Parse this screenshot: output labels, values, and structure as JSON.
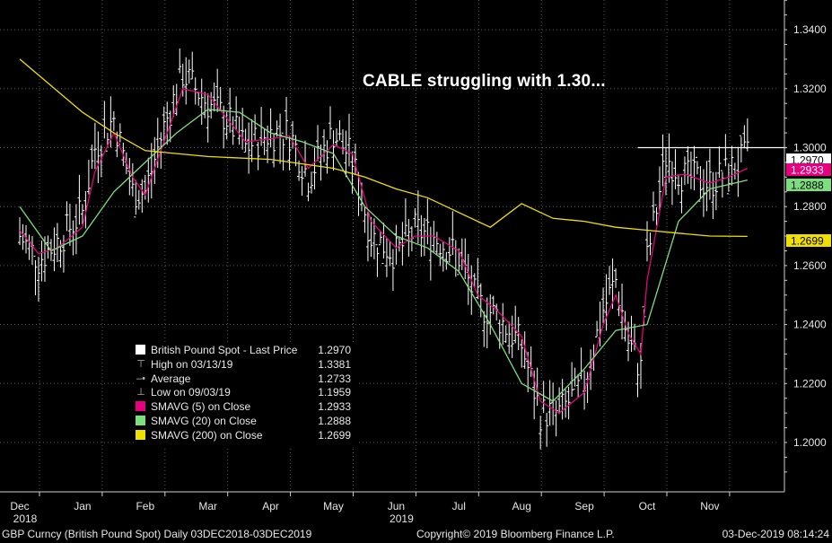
{
  "title": "CABLE struggling with 1.30...",
  "footer": {
    "left": "GBP Curncy (British Pound Spot)  Daily 03DEC2018-03DEC2019",
    "center": "Copyright© 2019 Bloomberg Finance L.P.",
    "right": "03-Dec-2019 08:14:24"
  },
  "legend": [
    {
      "label": "British Pound Spot - Last Price",
      "value": "1.2970",
      "icon": "white-square-icon",
      "color": "#ffffff"
    },
    {
      "label": "High on 03/13/19",
      "value": "1.3381",
      "icon": "high-marker-icon",
      "color": "#bbbbbb"
    },
    {
      "label": "Average",
      "value": "1.2733",
      "icon": "average-line-icon",
      "color": "#bbbbbb"
    },
    {
      "label": "Low on 09/03/19",
      "value": "1.1959",
      "icon": "low-marker-icon",
      "color": "#bbbbbb"
    },
    {
      "label": "SMAVG (5)  on Close",
      "value": "1.2933",
      "icon": "magenta-square-icon",
      "color": "#e6007e"
    },
    {
      "label": "SMAVG (20)  on Close",
      "value": "1.2888",
      "icon": "green-square-icon",
      "color": "#7dde7d"
    },
    {
      "label": "SMAVG (200)  on Close",
      "value": "1.2699",
      "icon": "yellow-square-icon",
      "color": "#f0e000"
    }
  ],
  "chart_data": {
    "type": "line",
    "x_categories": [
      "Dec",
      "Jan",
      "Feb",
      "Mar",
      "Apr",
      "May",
      "Jun",
      "Jul",
      "Aug",
      "Sep",
      "Oct",
      "Nov"
    ],
    "x_year_labels": [
      {
        "at": "Dec",
        "label": "2018"
      },
      {
        "at": "Jun",
        "label": "2019"
      }
    ],
    "yticks": [
      "1.2000",
      "1.2200",
      "1.2400",
      "1.2600",
      "1.2800",
      "1.3000",
      "1.3200",
      "1.3400"
    ],
    "ylim": [
      1.19,
      1.35
    ],
    "resistance_level": 1.3,
    "last_values": [
      {
        "series": "Last Price",
        "value": "1.2970",
        "color": "#ffffff",
        "text_color": "#000000"
      },
      {
        "series": "SMAVG (5)",
        "value": "1.2933",
        "color": "#e6007e",
        "text_color": "#ffffff"
      },
      {
        "series": "SMAVG (20)",
        "value": "1.2888",
        "color": "#7dde7d",
        "text_color": "#000000"
      },
      {
        "series": "SMAVG (200)",
        "value": "1.2699",
        "color": "#f0e000",
        "text_color": "#000000"
      }
    ],
    "series": [
      {
        "name": "British Pound Spot - Last Price",
        "color": "#ffffff",
        "x": [
          0,
          0.3,
          0.6,
          1,
          1.2,
          1.5,
          1.8,
          2,
          2.3,
          2.6,
          3,
          3.3,
          3.6,
          4,
          4.3,
          4.6,
          5,
          5.3,
          5.6,
          6,
          6.3,
          6.6,
          7,
          7.3,
          7.6,
          8,
          8.3,
          8.6,
          9,
          9.3,
          9.5,
          9.7,
          9.9,
          10,
          10.3,
          10.6,
          11,
          11.3,
          11.6
        ],
        "y": [
          1.27,
          1.262,
          1.268,
          1.278,
          1.3,
          1.31,
          1.285,
          1.285,
          1.307,
          1.325,
          1.315,
          1.31,
          1.3,
          1.305,
          1.305,
          1.29,
          1.305,
          1.296,
          1.27,
          1.264,
          1.272,
          1.27,
          1.263,
          1.247,
          1.243,
          1.233,
          1.21,
          1.21,
          1.22,
          1.245,
          1.255,
          1.234,
          1.225,
          1.262,
          1.297,
          1.29,
          1.288,
          1.292,
          1.297
        ]
      },
      {
        "name": "SMAVG (5)",
        "color": "#e6007e",
        "x": [
          0,
          0.3,
          0.6,
          1,
          1.2,
          1.5,
          1.8,
          2,
          2.3,
          2.6,
          3,
          3.3,
          3.6,
          4,
          4.3,
          4.6,
          5,
          5.3,
          5.6,
          6,
          6.3,
          6.6,
          7,
          7.3,
          7.6,
          8,
          8.3,
          8.6,
          9,
          9.3,
          9.5,
          9.7,
          9.9,
          10,
          10.3,
          10.6,
          11,
          11.3,
          11.6
        ],
        "y": [
          1.272,
          1.264,
          1.266,
          1.273,
          1.292,
          1.305,
          1.29,
          1.284,
          1.302,
          1.32,
          1.318,
          1.31,
          1.302,
          1.303,
          1.304,
          1.293,
          1.301,
          1.298,
          1.275,
          1.266,
          1.27,
          1.27,
          1.265,
          1.25,
          1.245,
          1.236,
          1.214,
          1.21,
          1.217,
          1.24,
          1.25,
          1.237,
          1.23,
          1.255,
          1.29,
          1.291,
          1.288,
          1.29,
          1.293
        ]
      },
      {
        "name": "SMAVG (20)",
        "color": "#7dde7d",
        "x": [
          0,
          0.5,
          1,
          1.5,
          2,
          2.5,
          3,
          3.5,
          4,
          4.5,
          5,
          5.5,
          6,
          6.5,
          7,
          7.5,
          8,
          8.5,
          9,
          9.5,
          10,
          10.5,
          11,
          11.6
        ],
        "y": [
          1.28,
          1.265,
          1.27,
          1.285,
          1.295,
          1.305,
          1.313,
          1.312,
          1.305,
          1.302,
          1.298,
          1.28,
          1.27,
          1.266,
          1.258,
          1.24,
          1.22,
          1.214,
          1.225,
          1.238,
          1.24,
          1.275,
          1.286,
          1.289
        ]
      },
      {
        "name": "SMAVG (200)",
        "color": "#f0e000",
        "x": [
          0,
          1,
          1.5,
          2,
          2.5,
          3,
          4,
          5,
          5.5,
          6,
          6.5,
          7,
          7.5,
          8,
          8.5,
          9,
          9.5,
          10,
          10.5,
          11,
          11.6
        ],
        "y": [
          1.33,
          1.312,
          1.305,
          1.299,
          1.298,
          1.297,
          1.296,
          1.293,
          1.29,
          1.286,
          1.283,
          1.278,
          1.273,
          1.281,
          1.276,
          1.275,
          1.273,
          1.272,
          1.271,
          1.27,
          1.2699
        ]
      }
    ]
  }
}
